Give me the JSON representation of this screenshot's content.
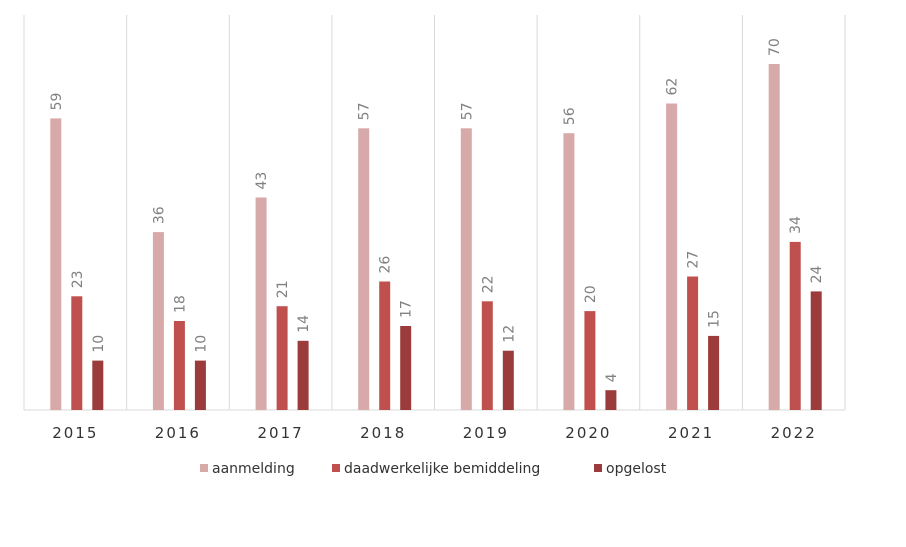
{
  "chart_data": {
    "type": "bar",
    "categories": [
      "2015",
      "2016",
      "2017",
      "2018",
      "2019",
      "2020",
      "2021",
      "2022"
    ],
    "series": [
      {
        "name": "aanmelding",
        "values": [
          59,
          36,
          43,
          57,
          57,
          56,
          62,
          70
        ],
        "color": "#d8a9a9"
      },
      {
        "name": "daadwerkelijke bemiddeling",
        "values": [
          23,
          18,
          21,
          26,
          22,
          20,
          27,
          34
        ],
        "color": "#c0504d"
      },
      {
        "name": "opgelost",
        "values": [
          10,
          10,
          14,
          17,
          12,
          4,
          15,
          24
        ],
        "color": "#9c3b3b"
      }
    ],
    "ylim": [
      0,
      82
    ],
    "grid": "vertical separators between categories",
    "legend_position": "bottom",
    "data_labels": "vertical, above bars"
  }
}
